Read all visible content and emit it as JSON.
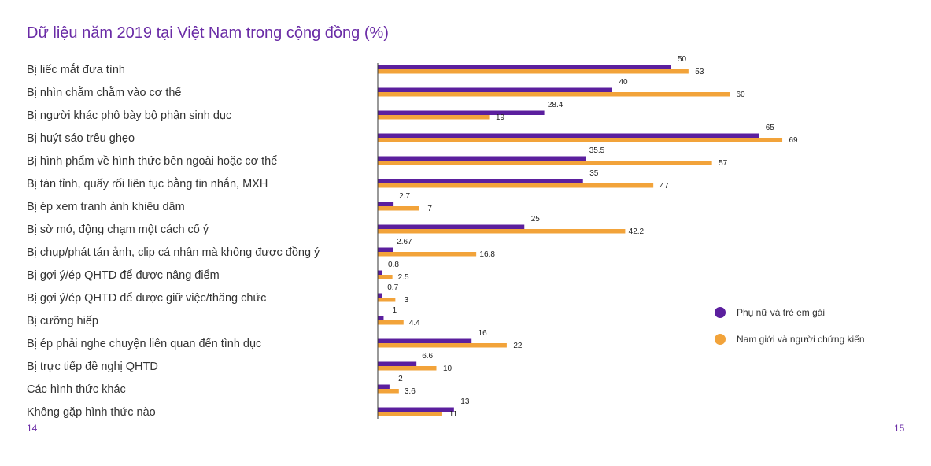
{
  "header": {
    "title": "Dữ liệu năm 2019 tại Việt Nam trong cộng đồng (%)"
  },
  "footer": {
    "page_left": "14",
    "page_right": "15"
  },
  "colors": {
    "women": "#5b1f9e",
    "men": "#f2a33a",
    "axis": "#333333"
  },
  "chart_data": {
    "type": "bar",
    "orientation": "horizontal",
    "title": "Dữ liệu năm 2019 tại Việt Nam trong cộng đồng (%)",
    "xlim": [
      0,
      75
    ],
    "grid": false,
    "legend_position": "right",
    "categories": [
      "Bị liếc mắt đưa tình",
      "Bị nhìn chằm chằm vào cơ thể",
      "Bị người khác phô bày bộ phận sinh dục",
      "Bị huýt sáo trêu ghẹo",
      "Bị hình phẩm về hình thức bên ngoài hoặc cơ thể",
      "Bị tán tỉnh, quấy rối liên tục bằng tin nhắn, MXH",
      "Bị ép xem tranh ảnh khiêu dâm",
      "Bị sờ mó, động chạm một cách cố ý",
      "Bị chụp/phát tán ảnh, clip cá nhân mà không được đồng ý",
      "Bị gợi ý/ép QHTD để được nâng điểm",
      "Bị gợi ý/ép QHTD để được giữ việc/thăng chức",
      "Bị cưỡng hiếp",
      "Bị ép phải nghe chuyện liên quan đến tình dục",
      "Bị trực tiếp đề nghị QHTD",
      "Các hình thức khác",
      "Không gặp hình thức nào"
    ],
    "series": [
      {
        "name": "Phụ nữ và trẻ em gái",
        "values": [
          50,
          40,
          28.4,
          65,
          35.5,
          35,
          2.7,
          25,
          2.67,
          0.8,
          0.7,
          1,
          16,
          6.6,
          2,
          13
        ],
        "labels": [
          "50",
          "40",
          "28.4",
          "65",
          "35.5",
          "35",
          "2.7",
          "25",
          "2.67",
          "0.8",
          "0.7",
          "1",
          "16",
          "6.6",
          "2",
          "13"
        ]
      },
      {
        "name": "Nam giới và người chứng kiến",
        "values": [
          53,
          60,
          19,
          69,
          57,
          47,
          7,
          42.2,
          16.8,
          2.5,
          3,
          4.4,
          22,
          10,
          3.6,
          11
        ],
        "labels": [
          "53",
          "60",
          "19",
          "69",
          "57",
          "47",
          "7",
          "42.2",
          "16.8",
          "2.5",
          "3",
          "4.4",
          "22",
          "10",
          "3.6",
          "11"
        ]
      }
    ]
  }
}
